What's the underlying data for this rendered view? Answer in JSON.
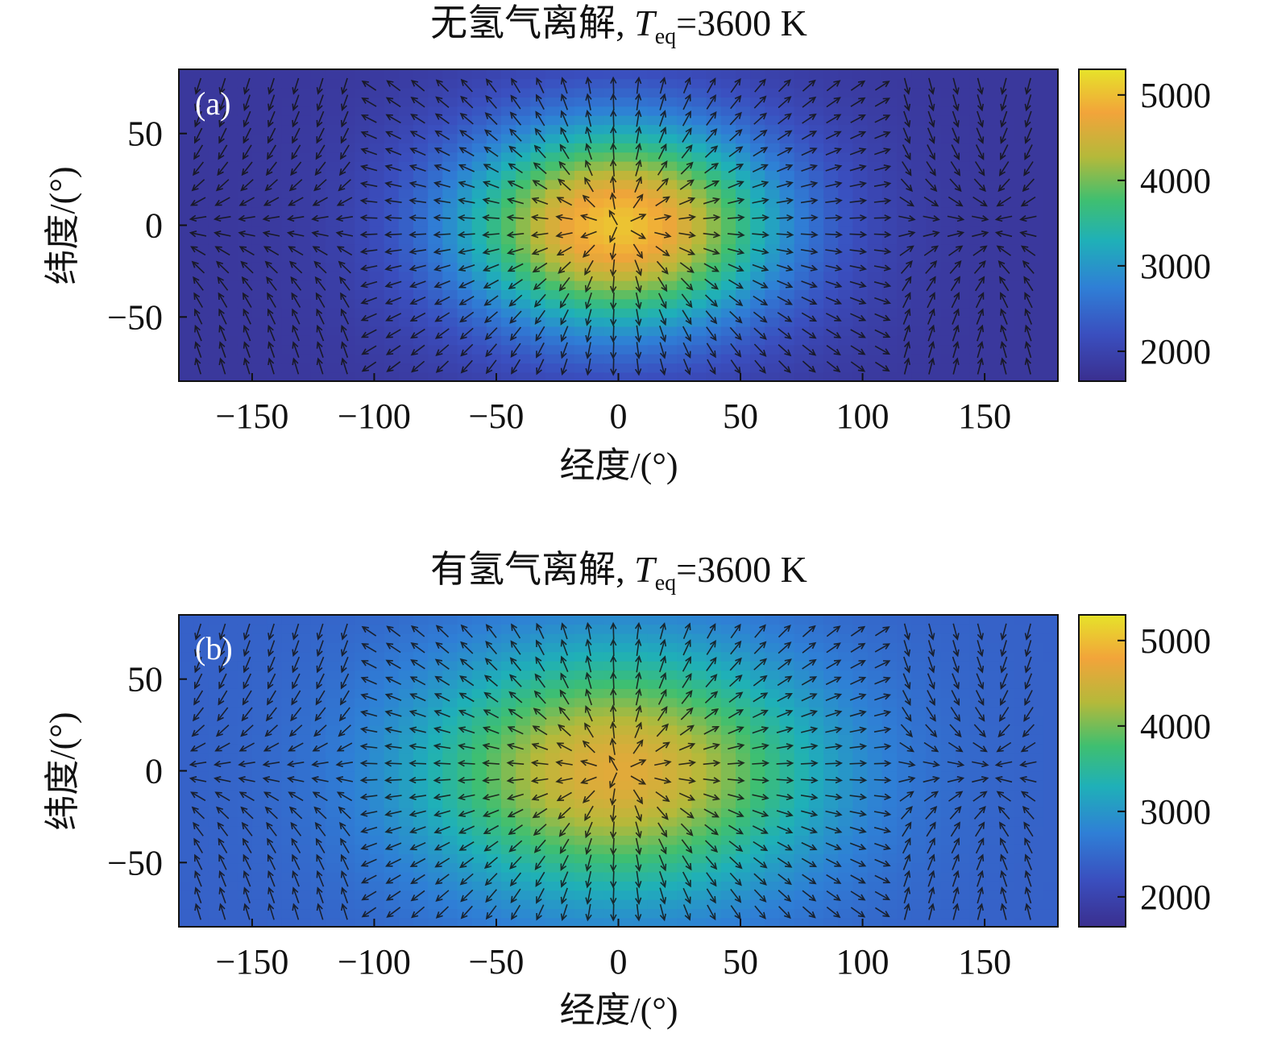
{
  "chart_data": [
    {
      "type": "heatmap",
      "panel_label": "(a)",
      "title": {
        "prefix": "无氢气离解, ",
        "var": "T",
        "sub": "eq",
        "suffix": "=3600 K"
      },
      "xlabel": "经度/(°)",
      "ylabel": "纬度/(°)",
      "xlim": [
        -180,
        180
      ],
      "ylim": [
        -85,
        85
      ],
      "xticks": [
        -150,
        -100,
        -50,
        0,
        50,
        100,
        150
      ],
      "xtick_labels": [
        "−150",
        "−100",
        "−50",
        "0",
        "50",
        "100",
        "150"
      ],
      "yticks": [
        50,
        0,
        -50
      ],
      "ytick_labels": [
        "50",
        "0",
        "−50"
      ],
      "colorbar": {
        "range": [
          1650,
          5300
        ],
        "ticks": [
          2000,
          3000,
          4000,
          5000
        ],
        "tick_labels": [
          "2000",
          "3000",
          "4000",
          "5000"
        ],
        "colormap": "viridis-like"
      },
      "temperature_field": {
        "substellar_lon": 0,
        "max_T": 5050,
        "min_T": 1800,
        "hot_spot_halfwidth_lon": 70,
        "hot_spot_halfwidth_lat": 60
      },
      "wind_field": "arrows diverge radially from the substellar point (0°, 0°) and converge on the night side near 150°"
    },
    {
      "type": "heatmap",
      "panel_label": "(b)",
      "title": {
        "prefix": "有氢气离解, ",
        "var": "T",
        "sub": "eq",
        "suffix": "=3600 K"
      },
      "xlabel": "经度/(°)",
      "ylabel": "纬度/(°)",
      "xlim": [
        -180,
        180
      ],
      "ylim": [
        -85,
        85
      ],
      "xticks": [
        -150,
        -100,
        -50,
        0,
        50,
        100,
        150
      ],
      "xtick_labels": [
        "−150",
        "−100",
        "−50",
        "0",
        "50",
        "100",
        "150"
      ],
      "yticks": [
        50,
        0,
        -50
      ],
      "ytick_labels": [
        "50",
        "0",
        "−50"
      ],
      "colorbar": {
        "range": [
          1650,
          5300
        ],
        "ticks": [
          2000,
          3000,
          4000,
          5000
        ],
        "tick_labels": [
          "2000",
          "3000",
          "4000",
          "5000"
        ],
        "colormap": "viridis-like"
      },
      "temperature_field": {
        "substellar_lon": 0,
        "max_T": 4650,
        "min_T": 2400,
        "hot_spot_halfwidth_lon": 85,
        "hot_spot_halfwidth_lat": 70
      },
      "wind_field": "arrows diverge radially from the substellar point (0°, 0°) and converge on the night side near 150°"
    }
  ]
}
